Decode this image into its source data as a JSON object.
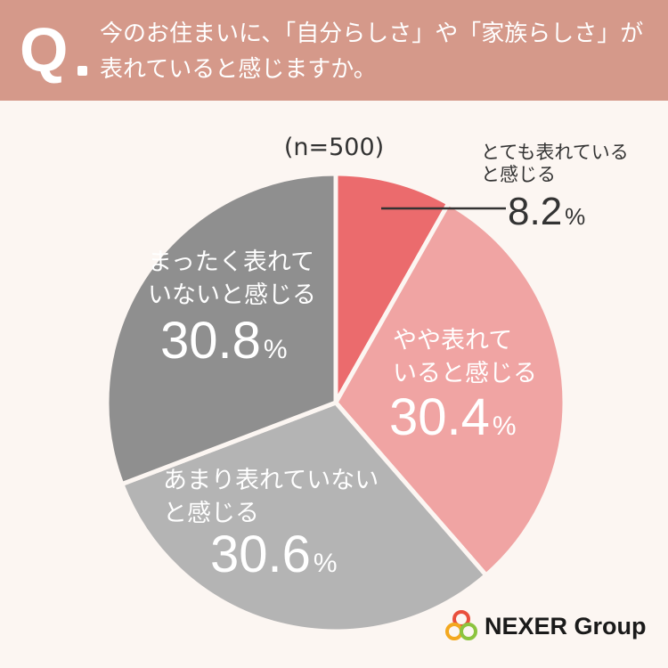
{
  "question": {
    "mark": "Q",
    "line1": "今のお住まいに、「自分らしさ」や「家族らしさ」が",
    "line2": "表れていると感じますか。"
  },
  "chart_data": {
    "type": "pie",
    "sample": "(n=500)",
    "unit": "%",
    "slices": [
      {
        "label_lines": [
          "とても表れている",
          "と感じる"
        ],
        "value": 8.2,
        "value_text": "8.2",
        "color": "#eb6b6d"
      },
      {
        "label_lines": [
          "やや表れて",
          "いると感じる"
        ],
        "value": 30.4,
        "value_text": "30.4",
        "color": "#f0a4a3"
      },
      {
        "label_lines": [
          "あまり表れていない",
          "と感じる"
        ],
        "value": 30.6,
        "value_text": "30.6",
        "color": "#b4b4b4"
      },
      {
        "label_lines": [
          "まったく表れて",
          "いないと感じる"
        ],
        "value": 30.8,
        "value_text": "30.8",
        "color": "#8f8f8f"
      }
    ]
  },
  "logo": {
    "text": "NEXER Group",
    "icon": "nexer-rings-icon",
    "colors": [
      "#e94f3c",
      "#f3a81f",
      "#8cc43f"
    ]
  }
}
